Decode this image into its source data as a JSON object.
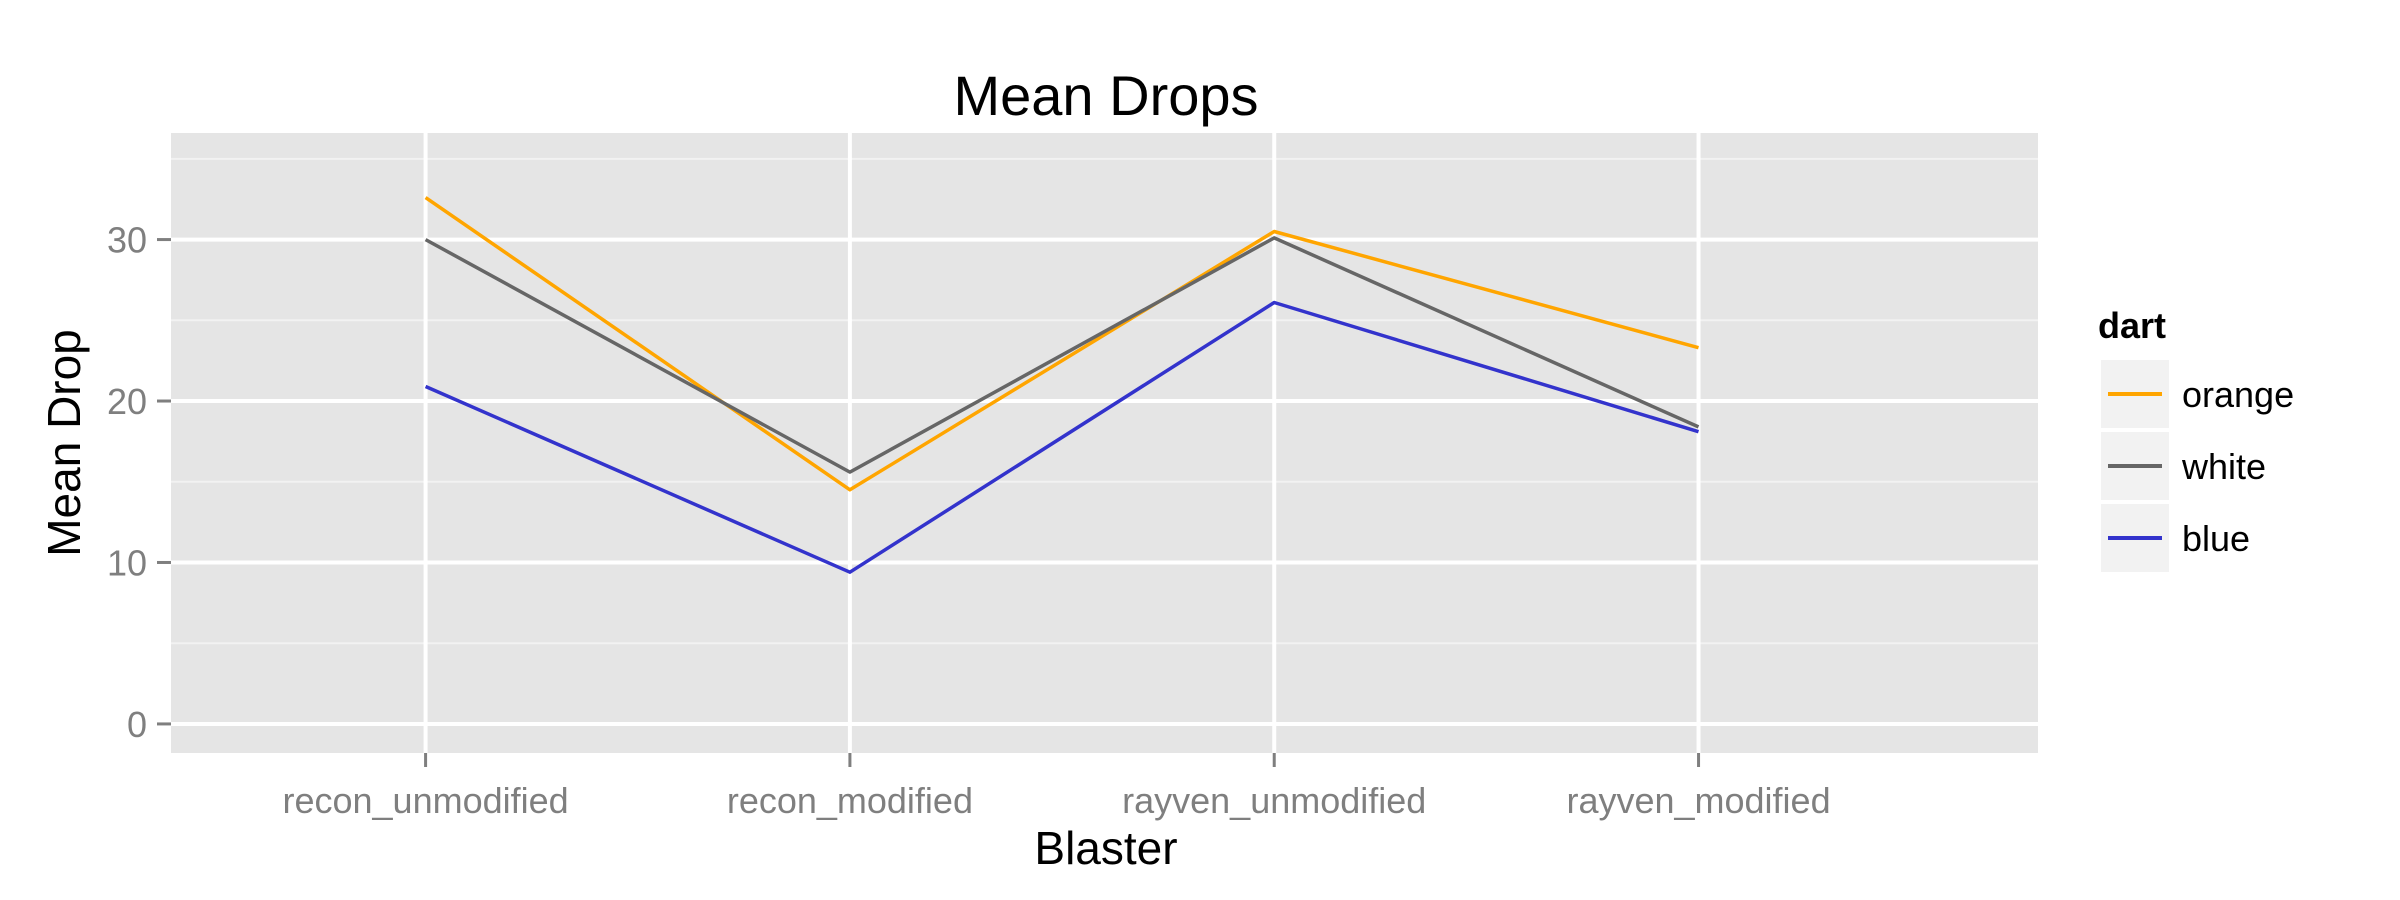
{
  "chart_data": {
    "type": "line",
    "title": "Mean Drops",
    "xlabel": "Blaster",
    "ylabel": "Mean Drop",
    "categories": [
      "recon_unmodified",
      "recon_modified",
      "rayven_unmodified",
      "rayven_modified"
    ],
    "ylim": [
      -1.8,
      36.6
    ],
    "yticks": [
      0,
      10,
      20,
      30
    ],
    "grid": true,
    "legend": {
      "title": "dart",
      "placement": "right"
    },
    "series": [
      {
        "name": "orange",
        "color": "#FFA500",
        "values": [
          32.6,
          14.5,
          30.5,
          23.3
        ]
      },
      {
        "name": "white",
        "color": "#666666",
        "values": [
          30.0,
          15.6,
          30.1,
          18.4
        ]
      },
      {
        "name": "blue",
        "color": "#3333CC",
        "values": [
          20.9,
          9.4,
          26.1,
          18.1
        ]
      }
    ]
  }
}
